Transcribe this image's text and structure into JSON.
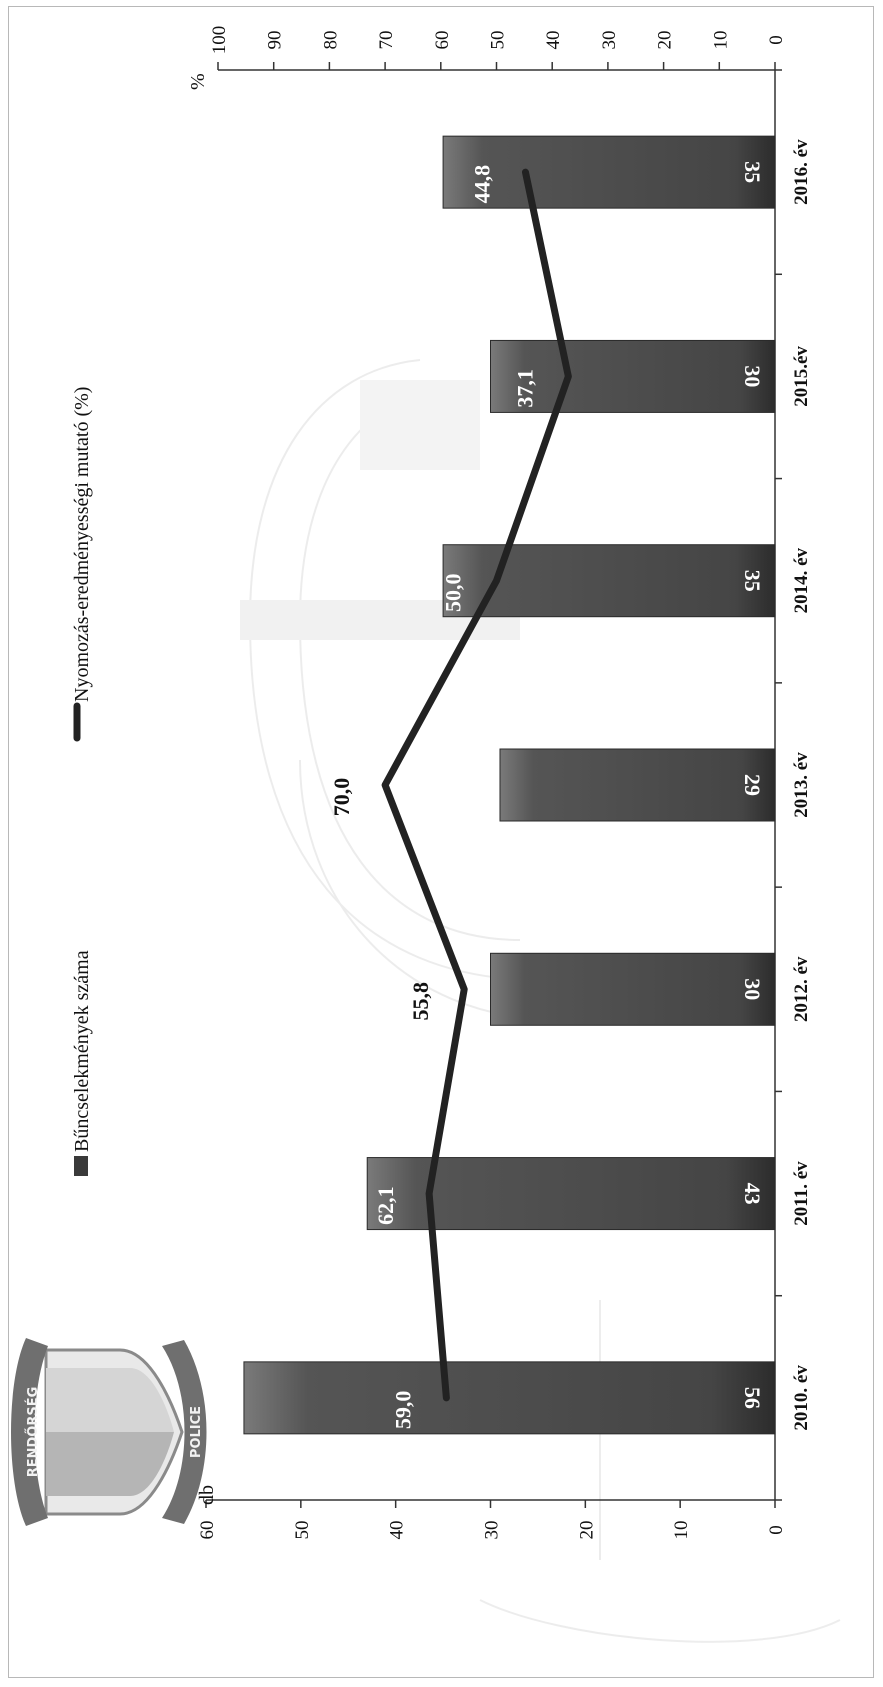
{
  "chart_data": {
    "type": "bar",
    "orientation": "rotated-90-clockwise",
    "categories": [
      "2010. év",
      "2011. év",
      "2012. év",
      "2013. év",
      "2014. év",
      "2015.év",
      "2016. év"
    ],
    "series": [
      {
        "name": "Bűncselekmények száma",
        "type": "bar",
        "axis": "left",
        "color": "#4a4a4a",
        "values": [
          56,
          43,
          30,
          29,
          35,
          30,
          35
        ]
      },
      {
        "name": "Nyomozás-eredményességi mutató (%)",
        "type": "line",
        "axis": "right",
        "color": "#222222",
        "values": [
          59.0,
          62.1,
          55.8,
          70.0,
          50.0,
          37.1,
          44.8
        ],
        "labels": [
          "59,0",
          "62,1",
          "55,8",
          "70,0",
          "50,0",
          "37,1",
          "44,8"
        ]
      }
    ],
    "left_axis": {
      "unit": "db",
      "range": [
        0,
        60
      ],
      "ticks": [
        "0",
        "10",
        "20",
        "30",
        "40",
        "50",
        "60"
      ]
    },
    "right_axis": {
      "unit": "%",
      "range": [
        0,
        100
      ],
      "ticks": [
        "0",
        "10",
        "20",
        "30",
        "40",
        "50",
        "60",
        "70",
        "80",
        "90",
        "100"
      ]
    },
    "legend": {
      "position": "top",
      "items": [
        "Bűncselekmények száma",
        "Nyomozás-eredményességi mutató (%)"
      ]
    },
    "logo": {
      "text_top": "RENDŐRSÉG",
      "text_bottom": "POLICE"
    }
  }
}
